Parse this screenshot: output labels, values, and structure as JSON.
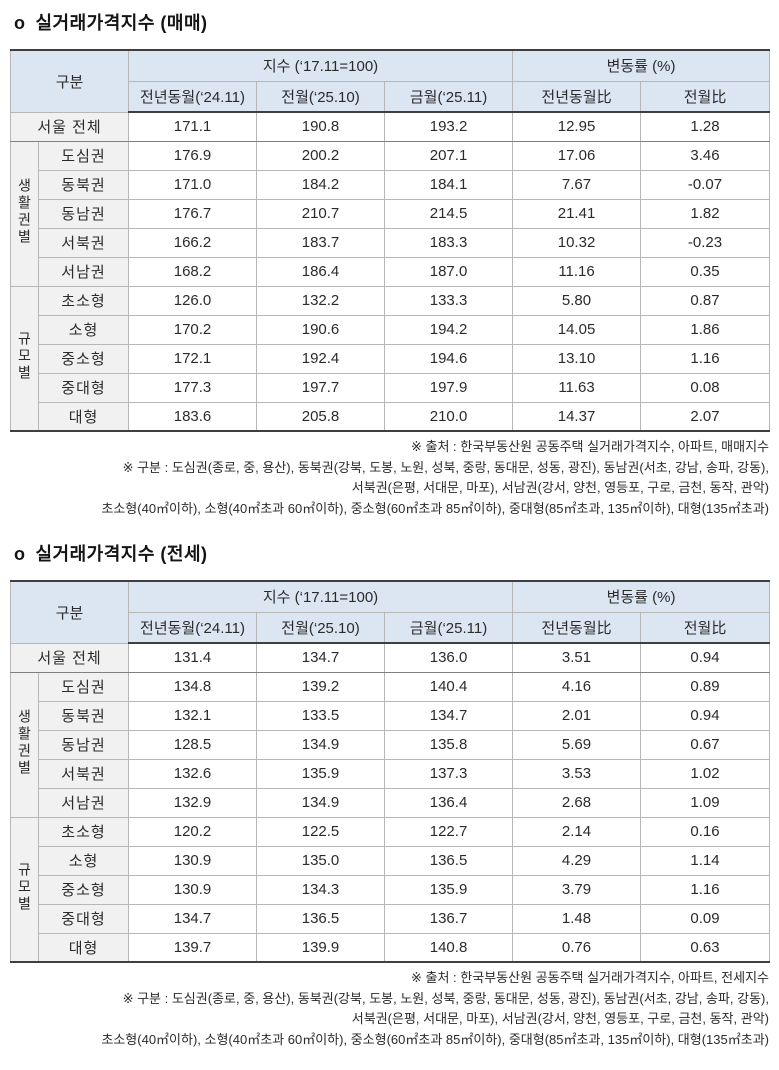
{
  "colors": {
    "header_bg": "#dce6f2",
    "label_bg": "#f1f1f1"
  },
  "tables": [
    {
      "bullet": "o",
      "title": "실거래가격지수 (매매)",
      "header": {
        "gubun": "구분",
        "index_group": "지수 (‘17.11=100)",
        "change_group": "변동률 (%)",
        "columns": [
          "전년동월(‘24.11)",
          "전월(‘25.10)",
          "금월(‘25.11)",
          "전년동월比",
          "전월比"
        ]
      },
      "total_row": {
        "label": "서울 전체",
        "values": [
          "171.1",
          "190.8",
          "193.2",
          "12.95",
          "1.28"
        ]
      },
      "groups": [
        {
          "name": "생활권별",
          "rows": [
            {
              "label": "도심권",
              "values": [
                "176.9",
                "200.2",
                "207.1",
                "17.06",
                "3.46"
              ]
            },
            {
              "label": "동북권",
              "values": [
                "171.0",
                "184.2",
                "184.1",
                "7.67",
                "-0.07"
              ]
            },
            {
              "label": "동남권",
              "values": [
                "176.7",
                "210.7",
                "214.5",
                "21.41",
                "1.82"
              ]
            },
            {
              "label": "서북권",
              "values": [
                "166.2",
                "183.7",
                "183.3",
                "10.32",
                "-0.23"
              ]
            },
            {
              "label": "서남권",
              "values": [
                "168.2",
                "186.4",
                "187.0",
                "11.16",
                "0.35"
              ]
            }
          ]
        },
        {
          "name": "규모별",
          "rows": [
            {
              "label": "초소형",
              "values": [
                "126.0",
                "132.2",
                "133.3",
                "5.80",
                "0.87"
              ]
            },
            {
              "label": "소형",
              "values": [
                "170.2",
                "190.6",
                "194.2",
                "14.05",
                "1.86"
              ]
            },
            {
              "label": "중소형",
              "values": [
                "172.1",
                "192.4",
                "194.6",
                "13.10",
                "1.16"
              ]
            },
            {
              "label": "중대형",
              "values": [
                "177.3",
                "197.7",
                "197.9",
                "11.63",
                "0.08"
              ]
            },
            {
              "label": "대형",
              "values": [
                "183.6",
                "205.8",
                "210.0",
                "14.37",
                "2.07"
              ]
            }
          ]
        }
      ],
      "footnotes": [
        "※ 출처 : 한국부동산원 공동주택 실거래가격지수, 아파트, 매매지수",
        "※ 구분 : 도심권(종로, 중, 용산), 동북권(강북, 도봉, 노원, 성북, 중랑, 동대문, 성동, 광진), 동남권(서초, 강남, 송파, 강동),",
        "서북권(은평, 서대문, 마포), 서남권(강서, 양천, 영등포, 구로, 금천, 동작, 관악)",
        "초소형(40㎡이하), 소형(40㎡초과 60㎡이하), 중소형(60㎡초과 85㎡이하), 중대형(85㎡초과, 135㎡이하), 대형(135㎡초과)"
      ]
    },
    {
      "bullet": "o",
      "title": "실거래가격지수 (전세)",
      "header": {
        "gubun": "구분",
        "index_group": "지수 (‘17.11=100)",
        "change_group": "변동률 (%)",
        "columns": [
          "전년동월(‘24.11)",
          "전월(‘25.10)",
          "금월(‘25.11)",
          "전년동월比",
          "전월比"
        ]
      },
      "total_row": {
        "label": "서울 전체",
        "values": [
          "131.4",
          "134.7",
          "136.0",
          "3.51",
          "0.94"
        ]
      },
      "groups": [
        {
          "name": "생활권별",
          "rows": [
            {
              "label": "도심권",
              "values": [
                "134.8",
                "139.2",
                "140.4",
                "4.16",
                "0.89"
              ]
            },
            {
              "label": "동북권",
              "values": [
                "132.1",
                "133.5",
                "134.7",
                "2.01",
                "0.94"
              ]
            },
            {
              "label": "동남권",
              "values": [
                "128.5",
                "134.9",
                "135.8",
                "5.69",
                "0.67"
              ]
            },
            {
              "label": "서북권",
              "values": [
                "132.6",
                "135.9",
                "137.3",
                "3.53",
                "1.02"
              ]
            },
            {
              "label": "서남권",
              "values": [
                "132.9",
                "134.9",
                "136.4",
                "2.68",
                "1.09"
              ]
            }
          ]
        },
        {
          "name": "규모별",
          "rows": [
            {
              "label": "초소형",
              "values": [
                "120.2",
                "122.5",
                "122.7",
                "2.14",
                "0.16"
              ]
            },
            {
              "label": "소형",
              "values": [
                "130.9",
                "135.0",
                "136.5",
                "4.29",
                "1.14"
              ]
            },
            {
              "label": "중소형",
              "values": [
                "130.9",
                "134.3",
                "135.9",
                "3.79",
                "1.16"
              ]
            },
            {
              "label": "중대형",
              "values": [
                "134.7",
                "136.5",
                "136.7",
                "1.48",
                "0.09"
              ]
            },
            {
              "label": "대형",
              "values": [
                "139.7",
                "139.9",
                "140.8",
                "0.76",
                "0.63"
              ]
            }
          ]
        }
      ],
      "footnotes": [
        "※ 출처 : 한국부동산원 공동주택 실거래가격지수, 아파트, 전세지수",
        "※ 구분 : 도심권(종로, 중, 용산), 동북권(강북, 도봉, 노원, 성북, 중랑, 동대문, 성동, 광진), 동남권(서초, 강남, 송파, 강동),",
        "서북권(은평, 서대문, 마포), 서남권(강서, 양천, 영등포, 구로, 금천, 동작, 관악)",
        "초소형(40㎡이하), 소형(40㎡초과 60㎡이하), 중소형(60㎡초과 85㎡이하), 중대형(85㎡초과, 135㎡이하), 대형(135㎡초과)"
      ]
    }
  ]
}
